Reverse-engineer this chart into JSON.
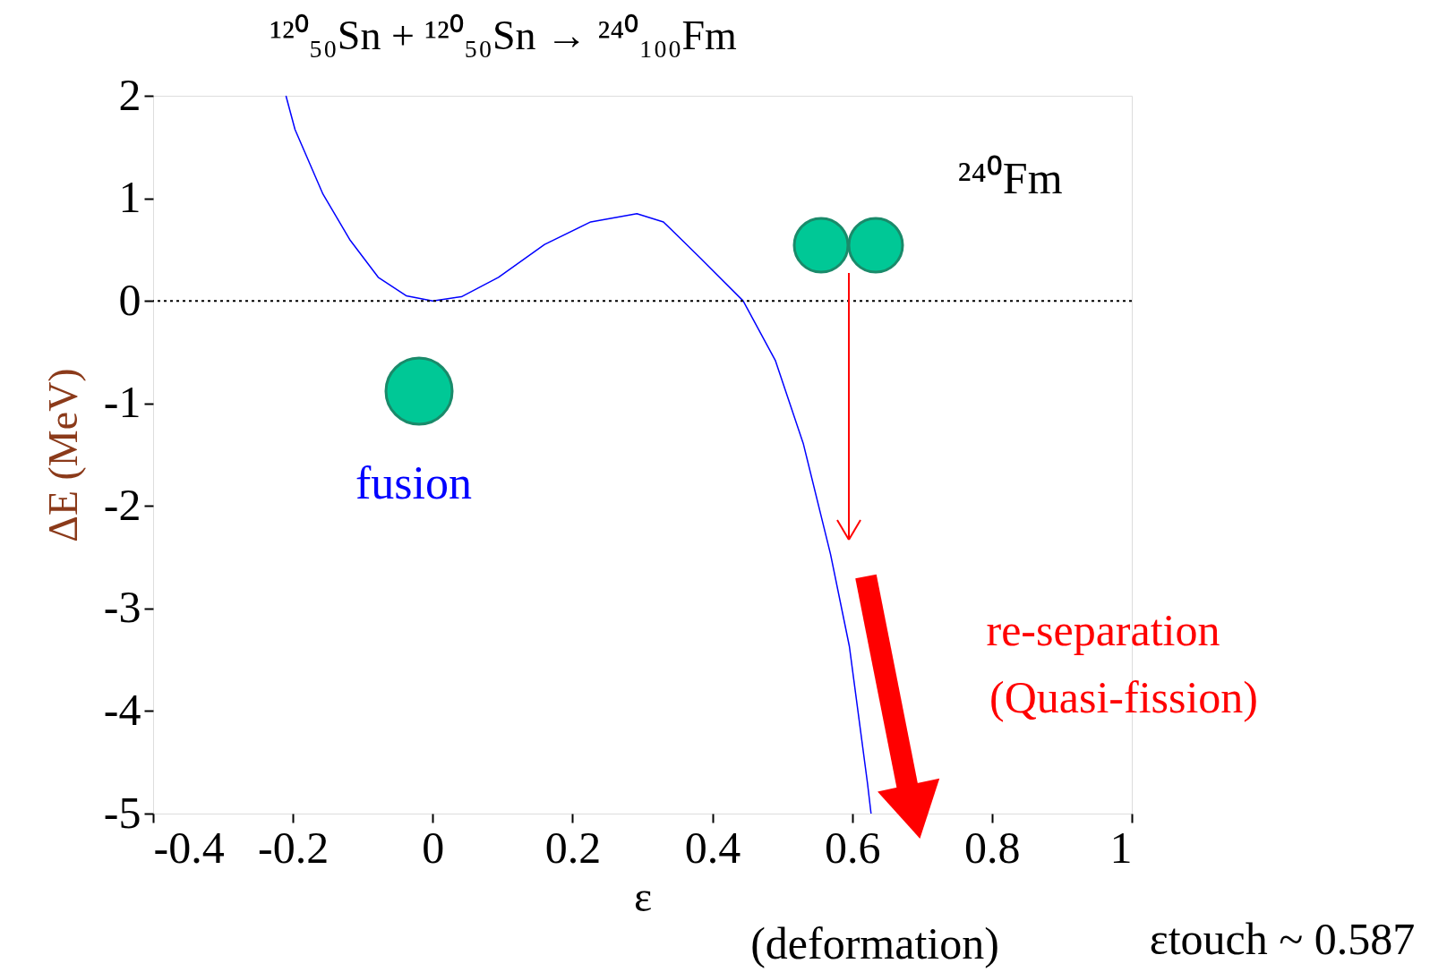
{
  "chart_data": {
    "type": "line",
    "title": "¹²⁰₅₀Sn + ¹²⁰₅₀Sn → ²⁴⁰₁₀₀Fm",
    "xlabel": "ε",
    "ylabel": "ΔE  (MeV)",
    "x": [
      -0.21,
      -0.197,
      -0.157,
      -0.118,
      -0.078,
      -0.038,
      0,
      0.041,
      0.094,
      0.16,
      0.226,
      0.292,
      0.33,
      0.384,
      0.444,
      0.49,
      0.53,
      0.569,
      0.596,
      0.622,
      0.627
    ],
    "series": [
      {
        "color": "#0000ff",
        "values": [
          2,
          1.67,
          1.04,
          0.59,
          0.23,
          0.05,
          0,
          0.04,
          0.23,
          0.55,
          0.77,
          0.85,
          0.77,
          0.41,
          0,
          -0.58,
          -1.39,
          -2.47,
          -3.37,
          -4.71,
          -5
        ]
      }
    ],
    "xlim": [
      -0.4,
      1
    ],
    "xticks": [
      -0.4,
      -0.2,
      0,
      0.2,
      0.4,
      0.6,
      0.8,
      1
    ],
    "ylim": [
      -5,
      2
    ],
    "yticks": [
      -5,
      -4,
      -3,
      -2,
      -1,
      0,
      1,
      2
    ],
    "ref_lines": [
      {
        "axis": "y",
        "value": 0,
        "color": "#000000",
        "line_style": "dotted"
      }
    ],
    "annotations": [
      "²⁴⁰Fm",
      "fusion",
      "re-separation",
      "(Quasi-fission)",
      "(deformation)",
      "εtouch ~ 0.587"
    ],
    "grid": false,
    "marker": "none",
    "line_style": "solid"
  }
}
